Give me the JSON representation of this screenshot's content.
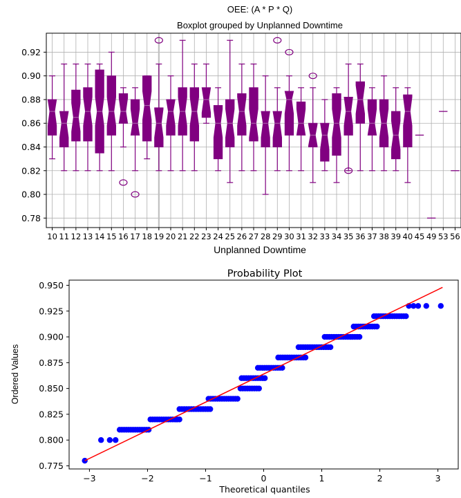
{
  "chart_data": [
    {
      "type": "boxplot",
      "title": "OEE: (A * P * Q)",
      "subtitle": "Boxplot grouped by Unplanned Downtime",
      "xlabel": "Unplanned Downtime",
      "ylabel": "",
      "ylim": [
        0.772,
        0.936
      ],
      "yticks": [
        0.78,
        0.8,
        0.82,
        0.84,
        0.86,
        0.88,
        0.9,
        0.92
      ],
      "grid": true,
      "notched": true,
      "color": "#800080",
      "highlight_color": "#c0c0c0",
      "categories": [
        "10",
        "11",
        "12",
        "13",
        "14",
        "15",
        "16",
        "17",
        "18",
        "19",
        "20",
        "21",
        "22",
        "23",
        "24",
        "25",
        "26",
        "27",
        "28",
        "29",
        "30",
        "31",
        "32",
        "33",
        "34",
        "35",
        "36",
        "37",
        "38",
        "39",
        "40",
        "45",
        "49",
        "53",
        "56"
      ],
      "boxes": [
        {
          "cat": "10",
          "min": 0.83,
          "q1": 0.85,
          "med": 0.87,
          "q3": 0.88,
          "max": 0.9,
          "outliers": []
        },
        {
          "cat": "11",
          "min": 0.82,
          "q1": 0.84,
          "med": 0.86,
          "q3": 0.87,
          "max": 0.91,
          "outliers": []
        },
        {
          "cat": "12",
          "min": 0.82,
          "q1": 0.845,
          "med": 0.865,
          "q3": 0.888,
          "max": 0.91,
          "outliers": []
        },
        {
          "cat": "13",
          "min": 0.82,
          "q1": 0.845,
          "med": 0.87,
          "q3": 0.89,
          "max": 0.91,
          "outliers": []
        },
        {
          "cat": "14",
          "min": 0.82,
          "q1": 0.835,
          "med": 0.87,
          "q3": 0.905,
          "max": 0.91,
          "outliers": []
        },
        {
          "cat": "15",
          "min": 0.82,
          "q1": 0.85,
          "med": 0.87,
          "q3": 0.9,
          "max": 0.92,
          "outliers": []
        },
        {
          "cat": "16",
          "min": 0.84,
          "q1": 0.86,
          "med": 0.87,
          "q3": 0.885,
          "max": 0.89,
          "outliers": [
            0.81
          ]
        },
        {
          "cat": "17",
          "min": 0.82,
          "q1": 0.85,
          "med": 0.86,
          "q3": 0.88,
          "max": 0.89,
          "outliers": [
            0.8
          ]
        },
        {
          "cat": "18",
          "min": 0.83,
          "q1": 0.845,
          "med": 0.875,
          "q3": 0.9,
          "max": 0.9,
          "outliers": []
        },
        {
          "cat": "19",
          "min": 0.82,
          "q1": 0.84,
          "med": 0.86,
          "q3": 0.873,
          "max": 0.91,
          "outliers": [
            0.93
          ]
        },
        {
          "cat": "20",
          "min": 0.82,
          "q1": 0.85,
          "med": 0.87,
          "q3": 0.88,
          "max": 0.9,
          "outliers": []
        },
        {
          "cat": "21",
          "min": 0.82,
          "q1": 0.85,
          "med": 0.87,
          "q3": 0.89,
          "max": 0.93,
          "outliers": []
        },
        {
          "cat": "22",
          "min": 0.82,
          "q1": 0.845,
          "med": 0.87,
          "q3": 0.89,
          "max": 0.91,
          "outliers": []
        },
        {
          "cat": "23",
          "min": 0.86,
          "q1": 0.865,
          "med": 0.88,
          "q3": 0.89,
          "max": 0.91,
          "outliers": []
        },
        {
          "cat": "24",
          "min": 0.82,
          "q1": 0.83,
          "med": 0.86,
          "q3": 0.875,
          "max": 0.89,
          "outliers": []
        },
        {
          "cat": "25",
          "min": 0.81,
          "q1": 0.84,
          "med": 0.86,
          "q3": 0.88,
          "max": 0.93,
          "outliers": []
        },
        {
          "cat": "26",
          "min": 0.82,
          "q1": 0.85,
          "med": 0.87,
          "q3": 0.885,
          "max": 0.91,
          "outliers": []
        },
        {
          "cat": "27",
          "min": 0.82,
          "q1": 0.845,
          "med": 0.86,
          "q3": 0.89,
          "max": 0.91,
          "outliers": []
        },
        {
          "cat": "28",
          "min": 0.8,
          "q1": 0.84,
          "med": 0.86,
          "q3": 0.87,
          "max": 0.9,
          "outliers": []
        },
        {
          "cat": "29",
          "min": 0.82,
          "q1": 0.84,
          "med": 0.86,
          "q3": 0.87,
          "max": 0.89,
          "outliers": [
            0.93
          ]
        },
        {
          "cat": "30",
          "min": 0.82,
          "q1": 0.85,
          "med": 0.88,
          "q3": 0.887,
          "max": 0.9,
          "outliers": [
            0.92
          ]
        },
        {
          "cat": "31",
          "min": 0.82,
          "q1": 0.85,
          "med": 0.86,
          "q3": 0.878,
          "max": 0.89,
          "outliers": []
        },
        {
          "cat": "32",
          "min": 0.81,
          "q1": 0.84,
          "med": 0.85,
          "q3": 0.86,
          "max": 0.89,
          "outliers": [
            0.9
          ]
        },
        {
          "cat": "33",
          "min": 0.82,
          "q1": 0.828,
          "med": 0.85,
          "q3": 0.86,
          "max": 0.88,
          "outliers": []
        },
        {
          "cat": "34",
          "min": 0.81,
          "q1": 0.833,
          "med": 0.86,
          "q3": 0.885,
          "max": 0.89,
          "outliers": []
        },
        {
          "cat": "35",
          "min": 0.82,
          "q1": 0.85,
          "med": 0.87,
          "q3": 0.882,
          "max": 0.91,
          "outliers": [
            0.82
          ]
        },
        {
          "cat": "36",
          "min": 0.82,
          "q1": 0.86,
          "med": 0.88,
          "q3": 0.895,
          "max": 0.91,
          "outliers": []
        },
        {
          "cat": "37",
          "min": 0.82,
          "q1": 0.85,
          "med": 0.86,
          "q3": 0.88,
          "max": 0.89,
          "outliers": []
        },
        {
          "cat": "38",
          "min": 0.82,
          "q1": 0.84,
          "med": 0.86,
          "q3": 0.88,
          "max": 0.9,
          "outliers": []
        },
        {
          "cat": "39",
          "min": 0.82,
          "q1": 0.83,
          "med": 0.85,
          "q3": 0.87,
          "max": 0.89,
          "outliers": []
        },
        {
          "cat": "40",
          "min": 0.81,
          "q1": 0.84,
          "med": 0.87,
          "q3": 0.884,
          "max": 0.89,
          "outliers": []
        },
        {
          "cat": "45",
          "min": 0.85,
          "q1": 0.85,
          "med": 0.85,
          "q3": 0.85,
          "max": 0.85,
          "outliers": []
        },
        {
          "cat": "49",
          "min": 0.78,
          "q1": 0.78,
          "med": 0.78,
          "q3": 0.78,
          "max": 0.78,
          "outliers": []
        },
        {
          "cat": "53",
          "min": 0.87,
          "q1": 0.87,
          "med": 0.87,
          "q3": 0.87,
          "max": 0.87,
          "outliers": []
        },
        {
          "cat": "56",
          "min": 0.82,
          "q1": 0.82,
          "med": 0.82,
          "q3": 0.82,
          "max": 0.82,
          "outliers": []
        }
      ]
    },
    {
      "type": "scatter",
      "title": "Probability Plot",
      "xlabel": "Theoretical quantiles",
      "ylabel": "Ordered Values",
      "xlim": [
        -3.35,
        3.35
      ],
      "ylim": [
        0.772,
        0.955
      ],
      "xticks": [
        -3,
        -2,
        -1,
        0,
        1,
        2,
        3
      ],
      "yticks": [
        0.775,
        0.8,
        0.825,
        0.85,
        0.875,
        0.9,
        0.925,
        0.95
      ],
      "grid": false,
      "point_color": "#0000ff",
      "line_color": "#ff0000",
      "fit_line": {
        "x": [
          -3.08,
          3.08
        ],
        "y": [
          0.78,
          0.948
        ]
      },
      "points": [
        {
          "y": 0.78,
          "x": [
            -3.08
          ]
        },
        {
          "y": 0.8,
          "x": [
            -2.8,
            -2.65,
            -2.55
          ]
        },
        {
          "y": 0.81,
          "xrange": [
            -2.48,
            -1.98
          ],
          "n": 14
        },
        {
          "y": 0.82,
          "xrange": [
            -1.95,
            -1.45
          ],
          "n": 14
        },
        {
          "y": 0.83,
          "xrange": [
            -1.45,
            -0.92
          ],
          "n": 14
        },
        {
          "y": 0.84,
          "xrange": [
            -0.95,
            -0.45
          ],
          "n": 14
        },
        {
          "y": 0.85,
          "xrange": [
            -0.4,
            -0.08
          ],
          "n": 9
        },
        {
          "y": 0.86,
          "xrange": [
            -0.38,
            0.02
          ],
          "n": 11
        },
        {
          "y": 0.87,
          "xrange": [
            -0.1,
            0.32
          ],
          "n": 12
        },
        {
          "y": 0.88,
          "xrange": [
            0.25,
            0.72
          ],
          "n": 13
        },
        {
          "y": 0.89,
          "xrange": [
            0.6,
            1.15
          ],
          "n": 15
        },
        {
          "y": 0.9,
          "xrange": [
            1.05,
            1.65
          ],
          "n": 16
        },
        {
          "y": 0.91,
          "xrange": [
            1.55,
            1.95
          ],
          "n": 11
        },
        {
          "y": 0.92,
          "xrange": [
            1.9,
            2.45
          ],
          "n": 15
        },
        {
          "y": 0.93,
          "x": [
            2.5,
            2.58,
            2.66,
            2.8,
            3.05
          ]
        }
      ]
    }
  ]
}
